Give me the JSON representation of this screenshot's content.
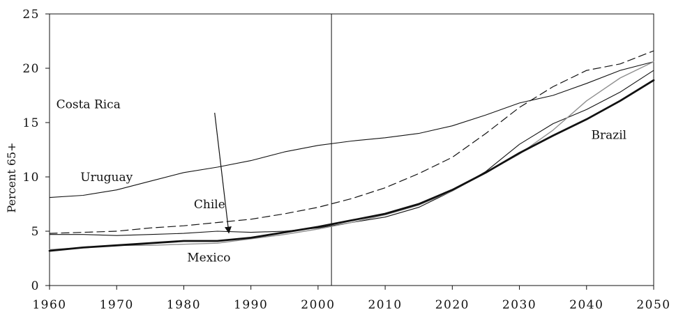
{
  "chart_data": {
    "type": "line",
    "title": "",
    "xlabel": "",
    "ylabel": "Percent 65+",
    "xlim": [
      1960,
      2050
    ],
    "ylim": [
      0,
      25
    ],
    "x_ticks": [
      "1960",
      "1970",
      "1980",
      "1990",
      "2000",
      "2010",
      "2020",
      "2030",
      "2040",
      "2050"
    ],
    "y_ticks": [
      "0",
      "5",
      "10",
      "15",
      "20",
      "25"
    ],
    "grid": false,
    "legend": "none",
    "vertical_reference_line": 2002,
    "series": [
      {
        "name": "Uruguay",
        "style": "solid-thin",
        "x": [
          1960,
          1965,
          1970,
          1975,
          1980,
          1985,
          1990,
          1995,
          2000,
          2005,
          2010,
          2015,
          2020,
          2025,
          2030,
          2035,
          2040,
          2045,
          2050
        ],
        "values": [
          8.1,
          8.3,
          8.8,
          9.6,
          10.4,
          10.9,
          11.5,
          12.3,
          12.9,
          13.3,
          13.6,
          14.0,
          14.7,
          15.7,
          16.8,
          17.5,
          18.6,
          19.8,
          20.6
        ]
      },
      {
        "name": "Chile",
        "style": "dashed",
        "x": [
          1960,
          1965,
          1970,
          1975,
          1980,
          1985,
          1990,
          1995,
          2000,
          2005,
          2010,
          2015,
          2020,
          2025,
          2030,
          2035,
          2040,
          2045,
          2050
        ],
        "values": [
          4.8,
          4.9,
          5.0,
          5.3,
          5.5,
          5.8,
          6.1,
          6.6,
          7.2,
          8.0,
          9.0,
          10.3,
          11.8,
          14.0,
          16.4,
          18.3,
          19.8,
          20.4,
          21.6
        ]
      },
      {
        "name": "Costa Rica",
        "style": "solid-thin",
        "x": [
          1960,
          1965,
          1970,
          1975,
          1980,
          1985,
          1990,
          1995,
          2000,
          2005,
          2010,
          2015,
          2020,
          2025,
          2030,
          2035,
          2040,
          2045,
          2050
        ],
        "values": [
          4.7,
          4.7,
          4.6,
          4.7,
          4.8,
          5.0,
          4.9,
          5.0,
          5.3,
          5.8,
          6.3,
          7.2,
          8.7,
          10.5,
          13.0,
          14.9,
          16.2,
          17.8,
          19.8
        ]
      },
      {
        "name": "Mexico",
        "style": "solid-gray",
        "x": [
          1960,
          1965,
          1970,
          1975,
          1980,
          1985,
          1990,
          1995,
          2000,
          2005,
          2010,
          2015,
          2020,
          2025,
          2030,
          2035,
          2040,
          2045,
          2050
        ],
        "values": [
          3.3,
          3.5,
          3.7,
          3.7,
          3.8,
          3.9,
          4.3,
          4.7,
          5.2,
          5.8,
          6.5,
          7.4,
          8.7,
          10.4,
          12.1,
          14.3,
          17.0,
          19.1,
          20.6
        ]
      },
      {
        "name": "Brazil",
        "style": "solid-thick",
        "x": [
          1960,
          1965,
          1970,
          1975,
          1980,
          1985,
          1990,
          1995,
          2000,
          2005,
          2010,
          2015,
          2020,
          2025,
          2030,
          2035,
          2040,
          2045,
          2050
        ],
        "values": [
          3.2,
          3.5,
          3.7,
          3.9,
          4.1,
          4.1,
          4.4,
          4.9,
          5.4,
          6.0,
          6.6,
          7.5,
          8.8,
          10.4,
          12.2,
          13.8,
          15.3,
          17.0,
          18.9
        ]
      }
    ],
    "annotations": [
      {
        "text": "Uruguay",
        "x": 1964.6,
        "y": 9.6
      },
      {
        "text": "Costa Rica",
        "x": 1961.0,
        "y": 16.3
      },
      {
        "text": "Chile",
        "x": 1981.5,
        "y": 7.1
      },
      {
        "text": "Mexico",
        "x": 1980.5,
        "y": 2.2
      },
      {
        "text": "Brazil",
        "x": 2040.7,
        "y": 13.5
      }
    ],
    "arrow": {
      "label": "Costa Rica",
      "from": [
        1984.6,
        15.9
      ],
      "to": [
        1986.7,
        4.9
      ]
    }
  }
}
